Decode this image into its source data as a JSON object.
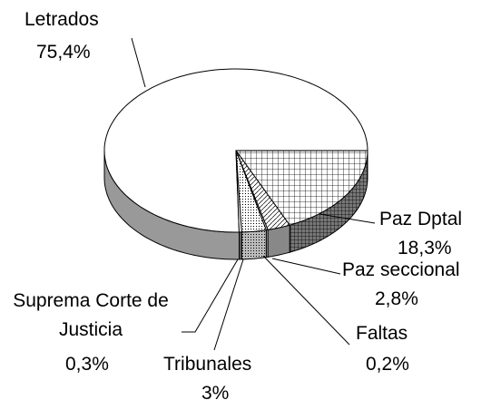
{
  "chart_data": {
    "type": "pie",
    "categories": [
      "Letrados",
      "Paz Dptal",
      "Paz seccional",
      "Faltas",
      "Tribunales",
      "Suprema Corte de Justicia"
    ],
    "values": [
      75.4,
      18.3,
      2.8,
      0.2,
      3,
      0.3
    ],
    "value_labels": [
      "75,4%",
      "18,3%",
      "2,8%",
      "0,2%",
      "3%",
      "0,3%"
    ]
  }
}
